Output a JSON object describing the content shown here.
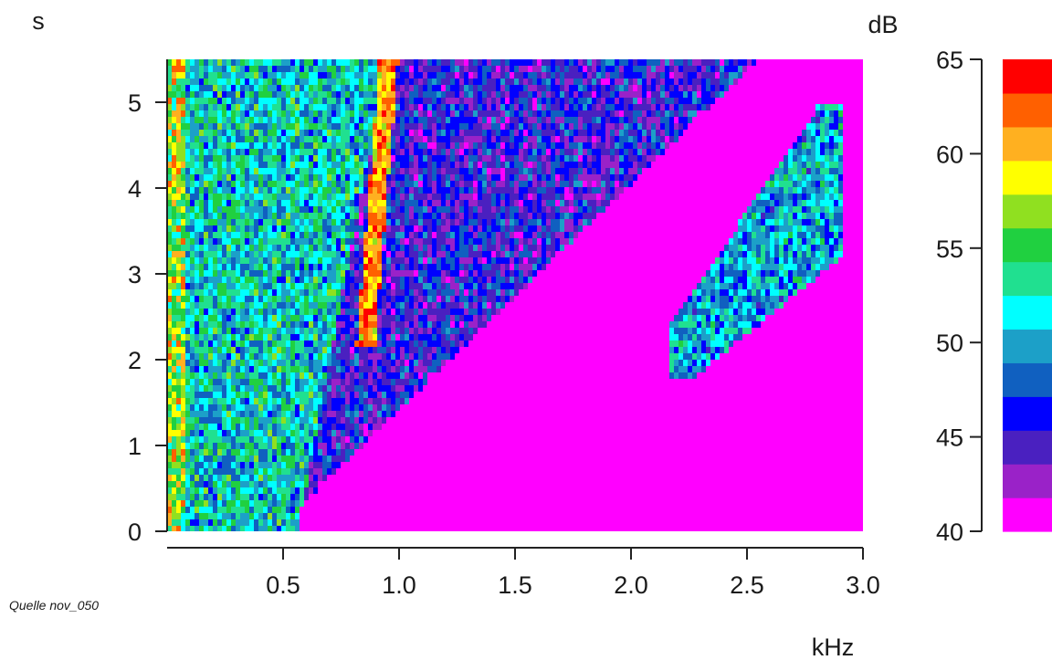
{
  "chart_data": {
    "type": "heatmap",
    "title": "",
    "xlabel": "kHz",
    "ylabel": "s",
    "x_ticks": [
      "0.5",
      "1.0",
      "1.5",
      "2.0",
      "2.5",
      "3.0"
    ],
    "x_tick_values": [
      0.5,
      1.0,
      1.5,
      2.0,
      2.5,
      3.0
    ],
    "y_ticks": [
      "0",
      "1",
      "2",
      "3",
      "4",
      "5"
    ],
    "y_tick_values": [
      0,
      1,
      2,
      3,
      4,
      5
    ],
    "xlim": [
      0,
      3.0
    ],
    "ylim": [
      0,
      5.5
    ],
    "colorbar": {
      "label": "dB",
      "ticks": [
        "40",
        "45",
        "50",
        "55",
        "60",
        "65"
      ],
      "tick_values": [
        40,
        45,
        50,
        55,
        60,
        65
      ],
      "range": [
        40,
        65
      ],
      "colors": [
        "#ff00ff",
        "#9a22c8",
        "#4a20c0",
        "#0000ff",
        "#1060c0",
        "#1ca0c8",
        "#00ffff",
        "#20e090",
        "#20d040",
        "#90e020",
        "#ffff00",
        "#ffb020",
        "#ff6000",
        "#ff0000"
      ]
    },
    "grid": false,
    "source_note": "Quelle nov_050"
  }
}
